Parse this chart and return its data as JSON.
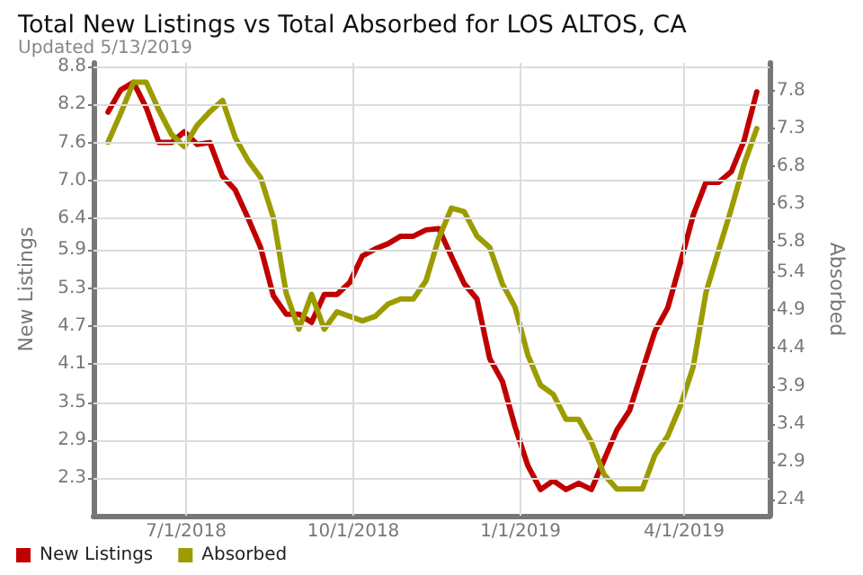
{
  "chart_data": {
    "type": "line",
    "title": "Total New Listings vs Total Absorbed for LOS ALTOS, CA",
    "subtitle": "Updated 5/13/2019",
    "ylabel": "New Listings",
    "y2label": "Absorbed",
    "x": [
      "2018-05-19",
      "2018-05-26",
      "2018-06-02",
      "2018-06-09",
      "2018-06-16",
      "2018-06-23",
      "2018-06-30",
      "2018-07-07",
      "2018-07-14",
      "2018-07-21",
      "2018-07-28",
      "2018-08-04",
      "2018-08-11",
      "2018-08-18",
      "2018-08-25",
      "2018-09-01",
      "2018-09-08",
      "2018-09-15",
      "2018-09-22",
      "2018-09-29",
      "2018-10-06",
      "2018-10-13",
      "2018-10-20",
      "2018-10-27",
      "2018-11-03",
      "2018-11-10",
      "2018-11-17",
      "2018-11-24",
      "2018-12-01",
      "2018-12-08",
      "2018-12-15",
      "2018-12-22",
      "2018-12-29",
      "2019-01-05",
      "2019-01-12",
      "2019-01-19",
      "2019-01-26",
      "2019-02-02",
      "2019-02-09",
      "2019-02-16",
      "2019-02-23",
      "2019-03-02",
      "2019-03-09",
      "2019-03-16",
      "2019-03-23",
      "2019-03-30",
      "2019-04-06",
      "2019-04-13",
      "2019-04-20",
      "2019-04-27",
      "2019-05-04",
      "2019-05-11"
    ],
    "series": [
      {
        "name": "New Listings",
        "color": "#c00000",
        "values": [
          8.08,
          8.43,
          8.55,
          8.15,
          7.6,
          7.6,
          7.77,
          7.57,
          7.6,
          7.07,
          6.85,
          6.41,
          5.94,
          5.18,
          4.89,
          4.89,
          4.76,
          5.2,
          5.2,
          5.39,
          5.81,
          5.92,
          6.0,
          6.12,
          6.12,
          6.22,
          6.24,
          5.8,
          5.37,
          5.13,
          4.19,
          3.83,
          3.11,
          2.5,
          2.12,
          2.26,
          2.12,
          2.22,
          2.12,
          2.59,
          3.06,
          3.37,
          4.0,
          4.62,
          4.99,
          5.7,
          6.45,
          6.97,
          6.97,
          7.14,
          7.63,
          8.4
        ]
      },
      {
        "name": "Absorbed",
        "color": "#9c9c00",
        "axis": "y2",
        "values": [
          7.12,
          7.5,
          7.91,
          7.91,
          7.54,
          7.22,
          7.06,
          7.34,
          7.52,
          7.67,
          7.18,
          6.88,
          6.65,
          6.12,
          5.13,
          4.65,
          5.11,
          4.65,
          4.88,
          4.82,
          4.76,
          4.82,
          4.98,
          5.05,
          5.05,
          5.29,
          5.85,
          6.25,
          6.2,
          5.88,
          5.73,
          5.25,
          4.94,
          4.31,
          3.91,
          3.79,
          3.46,
          3.46,
          3.16,
          2.73,
          2.54,
          2.54,
          2.54,
          2.99,
          3.24,
          3.64,
          4.15,
          5.13,
          5.69,
          6.24,
          6.83,
          7.3
        ]
      }
    ],
    "xlim": [
      "2018-05-11",
      "2019-05-18"
    ],
    "xticks": [
      {
        "value": "2018-07-01",
        "label": "7/1/2018"
      },
      {
        "value": "2018-10-01",
        "label": "10/1/2018"
      },
      {
        "value": "2019-01-01",
        "label": "1/1/2019"
      },
      {
        "value": "2019-04-01",
        "label": "4/1/2019"
      }
    ],
    "ylim": [
      1.707,
      8.857
    ],
    "yticks": [
      2.3,
      2.9,
      3.5,
      4.1,
      4.7,
      5.3,
      5.9,
      6.4,
      {
        "value": 7.0,
        "label": "7.0"
      },
      7.6,
      8.2,
      8.8
    ],
    "y2lim": [
      2.187,
      8.166
    ],
    "y2ticks": [
      2.4,
      2.9,
      3.4,
      3.9,
      4.4,
      4.9,
      5.4,
      5.8,
      6.3,
      6.8,
      7.3,
      7.8
    ],
    "grid": true,
    "legend": "bottom left",
    "marker": "none",
    "line_style": "solid"
  }
}
